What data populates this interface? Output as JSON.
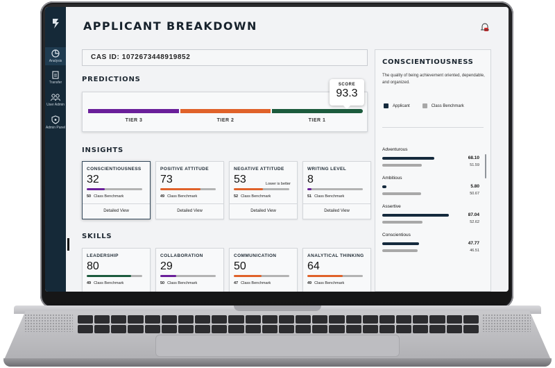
{
  "app": {
    "title": "APPLICANT BREAKDOWN",
    "cas_id": "CAS ID: 1072673448919852"
  },
  "sidebar": {
    "items": [
      {
        "label": "Analysis",
        "icon": "analysis-icon"
      },
      {
        "label": "Transfer",
        "icon": "transfer-icon"
      },
      {
        "label": "User Admin",
        "icon": "users-icon"
      },
      {
        "label": "Admin Panel",
        "icon": "shield-icon"
      }
    ]
  },
  "predictions": {
    "heading": "PREDICTIONS",
    "score_label": "SCORE",
    "score_value": "93.3",
    "tiers": [
      {
        "label": "TIER 3",
        "color": "#6a1f9a"
      },
      {
        "label": "TIER 2",
        "color": "#e0622a"
      },
      {
        "label": "TIER 1",
        "color": "#1c5b3d"
      }
    ]
  },
  "insights": {
    "heading": "INSIGHTS",
    "cards": [
      {
        "title": "CONSCIENTIOUSNESS",
        "value": "32",
        "fill": 0.32,
        "color": "#6a1f9a",
        "bench": "50",
        "bench_label": "Class Benchmark",
        "footer": "Detailed View",
        "note": ""
      },
      {
        "title": "POSITIVE ATTITUDE",
        "value": "73",
        "fill": 0.73,
        "color": "#e0622a",
        "bench": "49",
        "bench_label": "Class Benchmark",
        "footer": "Detailed View",
        "note": ""
      },
      {
        "title": "NEGATIVE ATTITUDE",
        "value": "53",
        "fill": 0.53,
        "color": "#e0622a",
        "bench": "52",
        "bench_label": "Class Benchmark",
        "footer": "Detailed View",
        "note": "Lower is better"
      },
      {
        "title": "WRITING LEVEL",
        "value": "8",
        "fill": 0.08,
        "color": "#6a1f9a",
        "bench": "51",
        "bench_label": "Class Benchmark",
        "footer": "Detailed View",
        "note": ""
      }
    ]
  },
  "skills": {
    "heading": "SKILLS",
    "cards": [
      {
        "title": "LEADERSHIP",
        "value": "80",
        "fill": 0.8,
        "color": "#1c5b3d",
        "bench": "49",
        "bench_label": "Class Benchmark"
      },
      {
        "title": "COLLABORATION",
        "value": "29",
        "fill": 0.29,
        "color": "#6a1f9a",
        "bench": "50",
        "bench_label": "Class Benchmark"
      },
      {
        "title": "COMMUNICATION",
        "value": "50",
        "fill": 0.5,
        "color": "#e0622a",
        "bench": "47",
        "bench_label": "Class Benchmark"
      },
      {
        "title": "ANALYTICAL THINKING",
        "value": "64",
        "fill": 0.64,
        "color": "#e0622a",
        "bench": "49",
        "bench_label": "Class Benchmark"
      }
    ]
  },
  "detail": {
    "title": "CONSCIENTIOUSNESS",
    "description": "The quality of being achievement oriented, dependable, and organized.",
    "legend_applicant": "Applicant",
    "legend_benchmark": "Class Benchmark",
    "applicant_color": "#152a3d",
    "benchmark_color": "#a8a8a8",
    "traits": [
      {
        "name": "Adventurous",
        "applicant": "68.10",
        "benchmark": "51.59",
        "a": 0.681,
        "b": 0.516
      },
      {
        "name": "Ambitious",
        "applicant": "5.80",
        "benchmark": "50.67",
        "a": 0.058,
        "b": 0.507
      },
      {
        "name": "Assertive",
        "applicant": "87.04",
        "benchmark": "52.62",
        "a": 0.87,
        "b": 0.526
      },
      {
        "name": "Conscientious",
        "applicant": "47.77",
        "benchmark": "46.51",
        "a": 0.478,
        "b": 0.465
      }
    ]
  }
}
